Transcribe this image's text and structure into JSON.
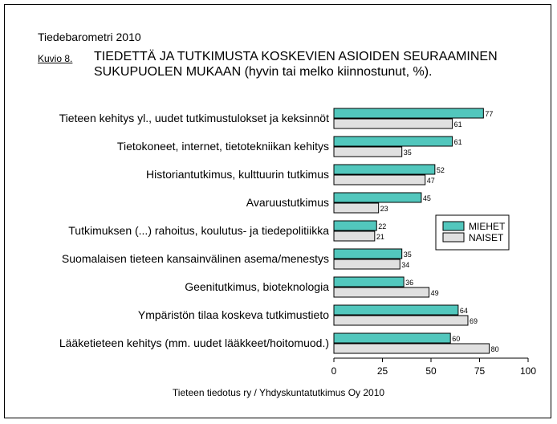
{
  "header": {
    "supertitle": "Tiedebarometri 2010",
    "figure_label": "Kuvio 8.",
    "title_line1": "TIEDETTÄ JA TUTKIMUSTA KOSKEVIEN ASIOIDEN SEURAAMINEN",
    "title_line2": "SUKUPUOLEN MUKAAN (hyvin tai melko kiinnostunut, %)."
  },
  "footer": {
    "source": "Tieteen tiedotus ry / Yhdyskuntatutkimus Oy 2010"
  },
  "chart_data": {
    "type": "bar",
    "orientation": "horizontal",
    "title": "TIEDETTÄ JA TUTKIMUSTA KOSKEVIEN ASIOIDEN SEURAAMINEN SUKUPUOLEN MUKAAN (hyvin tai melko kiinnostunut, %).",
    "categories": [
      "Tieteen kehitys yl., uudet tutkimustulokset ja keksinnöt",
      "Tietokoneet, internet, tietotekniikan kehitys",
      "Historiantutkimus, kulttuurin tutkimus",
      "Avaruustutkimus",
      "Tutkimuksen (...) rahoitus, koulutus-  ja tiedepolitiikka",
      "Suomalaisen tieteen kansainvälinen asema/menestys",
      "Geenitutkimus, bioteknologia",
      "Ympäristön tilaa koskeva tutkimustieto",
      "Lääketieteen kehitys (mm. uudet lääkkeet/hoitomuod.)"
    ],
    "series": [
      {
        "name": "MIEHET",
        "color": "#52c7bd",
        "values": [
          77,
          61,
          52,
          45,
          22,
          35,
          36,
          64,
          60
        ]
      },
      {
        "name": "NAISET",
        "color": "#e0e0e0",
        "values": [
          61,
          35,
          47,
          23,
          21,
          34,
          49,
          69,
          80
        ]
      }
    ],
    "xlim": [
      0,
      100
    ],
    "xticks": [
      "0",
      "25",
      "50",
      "75",
      "100"
    ],
    "grid": false,
    "legend": "right"
  }
}
